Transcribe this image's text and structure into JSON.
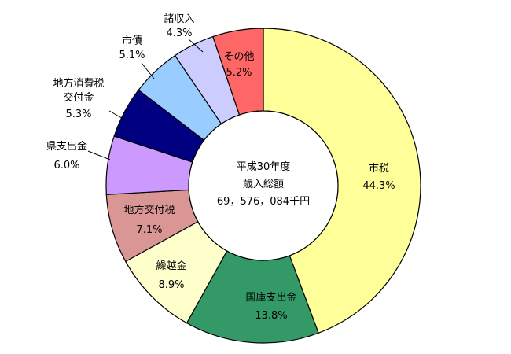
{
  "chart_data": {
    "type": "pie",
    "variant": "donut",
    "center_text": [
      "平成30年度",
      "歳入総額",
      "69，576，084千円"
    ],
    "start_angle_deg": 0,
    "direction": "clockwise",
    "slices": [
      {
        "label": "市税",
        "pct_text": "44.3%",
        "value": 44.3,
        "color": "#FFFF99"
      },
      {
        "label": "国庫支出金",
        "pct_text": "13.8%",
        "value": 13.8,
        "color": "#339966"
      },
      {
        "label": "繰越金",
        "pct_text": "8.9%",
        "value": 8.9,
        "color": "#FFFFCC"
      },
      {
        "label": "地方交付税",
        "pct_text": "7.1%",
        "value": 7.1,
        "color": "#DA9694"
      },
      {
        "label": "県支出金",
        "pct_text": "6.0%",
        "value": 6.0,
        "color": "#CC99FF"
      },
      {
        "label": "地方消費税交付金",
        "label_lines": [
          "地方消費税",
          "交付金"
        ],
        "pct_text": "5.3%",
        "value": 5.3,
        "color": "#000080"
      },
      {
        "label": "市債",
        "pct_text": "5.1%",
        "value": 5.1,
        "color": "#99CCFF"
      },
      {
        "label": "諸収入",
        "pct_text": "4.3%",
        "value": 4.3,
        "color": "#CCCCFF"
      },
      {
        "label": "その他",
        "pct_text": "5.2%",
        "value": 5.2,
        "color": "#FF6666"
      }
    ]
  }
}
